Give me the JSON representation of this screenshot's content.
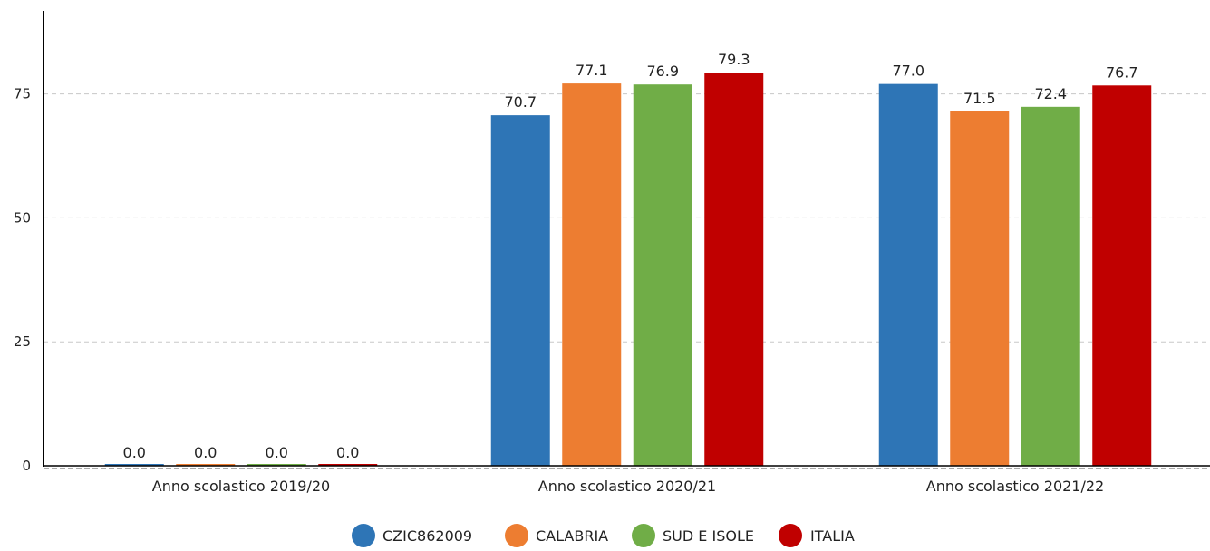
{
  "chart_data": {
    "type": "bar",
    "title": "",
    "xlabel": "",
    "ylabel": "",
    "ylim": [
      0,
      93
    ],
    "yticks": [
      "0",
      "25",
      "50",
      "75"
    ],
    "grid": true,
    "legend_position": "bottom",
    "categories": [
      "Anno scolastico 2019/20",
      "Anno scolastico 2020/21",
      "Anno scolastico 2021/22"
    ],
    "series": [
      {
        "name": "CZIC862009",
        "color": "#2e75b6",
        "values": [
          0.0,
          70.7,
          77.0
        ],
        "labels": [
          "0.0",
          "70.7",
          "77.0"
        ]
      },
      {
        "name": "CALABRIA",
        "color": "#ed7d31",
        "values": [
          0.0,
          77.1,
          71.5
        ],
        "labels": [
          "0.0",
          "77.1",
          "71.5"
        ]
      },
      {
        "name": "SUD E ISOLE",
        "color": "#70ad47",
        "values": [
          0.0,
          76.9,
          72.4
        ],
        "labels": [
          "0.0",
          "76.9",
          "72.4"
        ]
      },
      {
        "name": "ITALIA",
        "color": "#c00000",
        "values": [
          0.0,
          79.3,
          76.7
        ],
        "labels": [
          "0.0",
          "79.3",
          "76.7"
        ]
      }
    ]
  }
}
